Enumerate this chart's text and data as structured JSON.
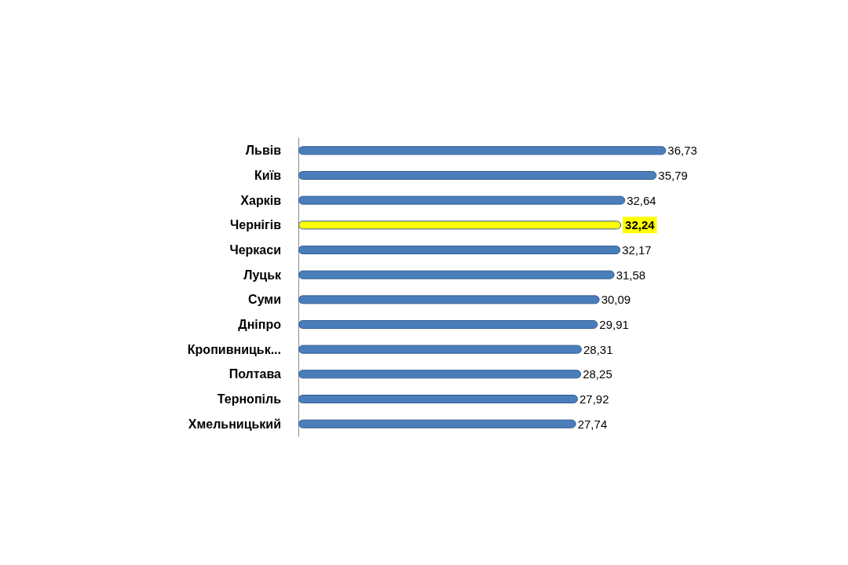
{
  "chart_data": {
    "type": "bar",
    "orientation": "horizontal",
    "value_labels": [
      "36,73",
      "35,79",
      "32,64",
      "32,24",
      "32,17",
      "31,58",
      "30,09",
      "29,91",
      "28,31",
      "28,25",
      "27,92",
      "27,74"
    ],
    "categories": [
      "Львів",
      "Київ",
      "Харків",
      "Чернігів",
      "Черкаси",
      "Луцьк",
      "Суми",
      "Дніпро",
      "Кропивницьк...",
      "Полтава",
      "Тернопіль",
      "Хмельницький"
    ],
    "values": [
      36.73,
      35.79,
      32.64,
      32.24,
      32.17,
      31.58,
      30.09,
      29.91,
      28.31,
      28.25,
      27.92,
      27.74
    ],
    "colors": [
      "#4a7ebb",
      "#4a7ebb",
      "#4a7ebb",
      "#ffff00",
      "#4a7ebb",
      "#4a7ebb",
      "#4a7ebb",
      "#4a7ebb",
      "#4a7ebb",
      "#4a7ebb",
      "#4a7ebb",
      "#4a7ebb"
    ]
  }
}
